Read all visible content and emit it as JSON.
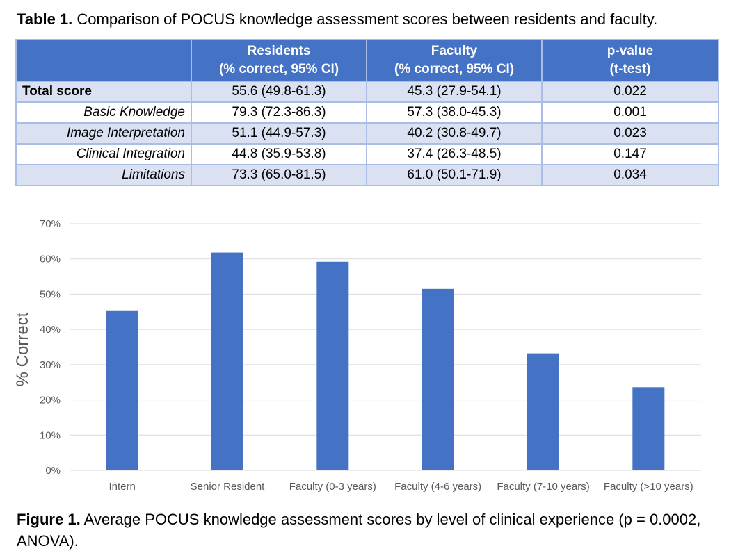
{
  "table": {
    "caption_label": "Table 1.",
    "caption_text": " Comparison of POCUS knowledge assessment scores between residents and faculty.",
    "headers": [
      {
        "line1": "",
        "line2": ""
      },
      {
        "line1": "Residents",
        "line2": "(% correct, 95% CI)"
      },
      {
        "line1": "Faculty",
        "line2": "(% correct, 95% CI)"
      },
      {
        "line1": "p-value",
        "line2": "(t-test)"
      }
    ],
    "rows": [
      {
        "label": "Total score",
        "residents": "55.6 (49.8-61.3)",
        "faculty": "45.3 (27.9-54.1)",
        "p": "0.022"
      },
      {
        "label": "Basic Knowledge",
        "residents": "79.3 (72.3-86.3)",
        "faculty": "57.3 (38.0-45.3)",
        "p": "0.001"
      },
      {
        "label": "Image Interpretation",
        "residents": "51.1 (44.9-57.3)",
        "faculty": "40.2 (30.8-49.7)",
        "p": "0.023"
      },
      {
        "label": "Clinical Integration",
        "residents": "44.8 (35.9-53.8)",
        "faculty": "37.4 (26.3-48.5)",
        "p": "0.147"
      },
      {
        "label": "Limitations",
        "residents": "73.3 (65.0-81.5)",
        "faculty": "61.0 (50.1-71.9)",
        "p": "0.034"
      }
    ]
  },
  "chart_data": {
    "type": "bar",
    "categories": [
      "Intern",
      "Senior Resident",
      "Faculty (0-3 years)",
      "Faculty (4-6 years)",
      "Faculty (7-10 years)",
      "Faculty (>10 years)"
    ],
    "values": [
      45.4,
      61.8,
      59.2,
      51.5,
      33.2,
      23.6
    ],
    "ylabel": "% Correct",
    "ylim": [
      0,
      70
    ],
    "yticks": [
      0,
      10,
      20,
      30,
      40,
      50,
      60,
      70
    ],
    "ytick_labels": [
      "0%",
      "10%",
      "20%",
      "30%",
      "40%",
      "50%",
      "60%",
      "70%"
    ],
    "grid": true,
    "bar_color": "#4472c4",
    "grid_color": "#d9d9d9",
    "axis_text_color": "#595959"
  },
  "figure": {
    "caption_label": "Figure 1.",
    "caption_text": " Average POCUS knowledge assessment scores by level of clinical experience (p = 0.0002, ANOVA)."
  },
  "colors": {
    "header_fill": "#4472c4",
    "band_fill": "#d9e1f2",
    "border": "#a9bde5"
  }
}
